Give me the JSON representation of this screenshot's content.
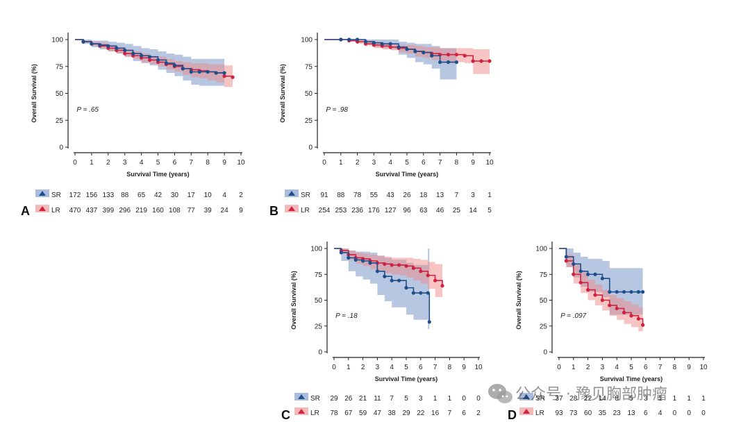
{
  "colors": {
    "SR": "#1f4e8c",
    "LR": "#d0213f",
    "SR_band": "#6f8fc4",
    "LR_band": "#f08a8a"
  },
  "watermark": {
    "text": "公众号 · 豫见胸部肿瘤",
    "icon": "wechat-icon"
  },
  "chart_data": [
    {
      "id": "A",
      "type": "line",
      "panel_letter": "A",
      "ylabel": "Overall Survival (%)",
      "xlabel": "Survival Time (years)",
      "ylim": [
        0,
        100
      ],
      "xlim": [
        0,
        10
      ],
      "yticks": [
        "0",
        "25",
        "50",
        "75",
        "100"
      ],
      "xticks": [
        "0",
        "1",
        "2",
        "3",
        "4",
        "5",
        "6",
        "7",
        "8",
        "9",
        "10"
      ],
      "p_value": "P = .65",
      "show_xlabel": true,
      "series": [
        {
          "name": "SR",
          "x": [
            0,
            0.5,
            1,
            1.5,
            2,
            2.5,
            3,
            3.5,
            4,
            4.5,
            5,
            5.5,
            6,
            6.5,
            7,
            7.5,
            8,
            8.5,
            9
          ],
          "y": [
            100,
            98,
            96,
            95,
            94,
            92,
            90,
            87,
            85,
            84,
            81,
            78,
            76,
            73,
            70,
            70,
            70,
            69,
            69
          ],
          "lower": [
            100,
            96,
            93,
            91,
            89,
            87,
            84,
            80,
            78,
            76,
            72,
            69,
            66,
            62,
            58,
            57,
            57,
            57,
            57
          ],
          "upper": [
            100,
            100,
            99,
            99,
            98,
            97,
            96,
            94,
            92,
            91,
            89,
            87,
            86,
            84,
            82,
            82,
            82,
            82,
            82
          ]
        },
        {
          "name": "LR",
          "x": [
            0,
            0.5,
            1,
            1.5,
            2,
            2.5,
            3,
            3.5,
            4,
            4.5,
            5,
            5.5,
            6,
            6.5,
            7,
            7.5,
            8,
            8.5,
            9,
            9.5
          ],
          "y": [
            100,
            98,
            96,
            94,
            92,
            90,
            87,
            85,
            83,
            81,
            79,
            77,
            75,
            73,
            72,
            71,
            70,
            69,
            66,
            65
          ],
          "lower": [
            100,
            97,
            94,
            92,
            89,
            87,
            84,
            82,
            79,
            77,
            75,
            72,
            70,
            67,
            65,
            64,
            62,
            60,
            56,
            55
          ],
          "upper": [
            100,
            99,
            98,
            97,
            95,
            93,
            91,
            89,
            87,
            85,
            84,
            82,
            80,
            79,
            78,
            78,
            77,
            77,
            76,
            75
          ]
        }
      ],
      "risk_table": {
        "SR": [
          "172",
          "156",
          "133",
          "88",
          "65",
          "42",
          "30",
          "17",
          "10",
          "4",
          "2"
        ],
        "LR": [
          "470",
          "437",
          "399",
          "296",
          "219",
          "160",
          "108",
          "77",
          "39",
          "24",
          "9"
        ]
      }
    },
    {
      "id": "B",
      "type": "line",
      "panel_letter": "B",
      "ylabel": "Overall Survival (%)",
      "xlabel": "Survival Time (years)",
      "ylim": [
        0,
        100
      ],
      "xlim": [
        0,
        10
      ],
      "yticks": [
        "0",
        "25",
        "50",
        "75",
        "100"
      ],
      "xticks": [
        "0",
        "1",
        "2",
        "3",
        "4",
        "5",
        "6",
        "7",
        "8",
        "9",
        "10"
      ],
      "p_value": "P = .98",
      "show_xlabel": true,
      "series": [
        {
          "name": "SR",
          "x": [
            0,
            1,
            1.5,
            2,
            2.5,
            3,
            3.5,
            4,
            4.5,
            5,
            5.5,
            6,
            6.5,
            7,
            7.5,
            8
          ],
          "y": [
            100,
            100,
            100,
            100,
            98,
            97,
            96,
            96,
            93,
            91,
            89,
            88,
            85,
            79,
            79,
            79
          ],
          "lower": [
            100,
            100,
            100,
            99,
            96,
            93,
            92,
            91,
            86,
            83,
            79,
            77,
            73,
            63,
            63,
            63
          ],
          "upper": [
            100,
            100,
            100,
            100,
            100,
            100,
            100,
            100,
            98,
            97,
            96,
            96,
            94,
            92,
            92,
            92
          ]
        },
        {
          "name": "LR",
          "x": [
            0,
            1,
            1.5,
            2,
            2.5,
            3,
            3.5,
            4,
            4.5,
            5,
            5.5,
            6,
            6.5,
            7,
            7.5,
            8,
            8.5,
            9,
            9.5,
            10
          ],
          "y": [
            100,
            100,
            99,
            98,
            96,
            95,
            94,
            93,
            92,
            91,
            89,
            88,
            87,
            86,
            86,
            86,
            85,
            80,
            80,
            80
          ],
          "lower": [
            100,
            100,
            98,
            96,
            94,
            92,
            91,
            90,
            88,
            87,
            84,
            83,
            81,
            80,
            79,
            79,
            78,
            68,
            68,
            68
          ],
          "upper": [
            100,
            100,
            100,
            100,
            99,
            98,
            97,
            96,
            95,
            95,
            94,
            93,
            93,
            92,
            92,
            92,
            92,
            91,
            91,
            91
          ]
        }
      ],
      "risk_table": {
        "SR": [
          "91",
          "88",
          "78",
          "55",
          "43",
          "26",
          "18",
          "13",
          "7",
          "3",
          "1"
        ],
        "LR": [
          "254",
          "253",
          "236",
          "176",
          "127",
          "96",
          "63",
          "46",
          "25",
          "14",
          "5"
        ]
      }
    },
    {
      "id": "C",
      "type": "line",
      "panel_letter": "C",
      "ylabel": "Overall Survival (%)",
      "xlabel": "Survival Time (years)",
      "ylim": [
        0,
        100
      ],
      "xlim": [
        0,
        10
      ],
      "yticks": [
        "0",
        "25",
        "50",
        "75",
        "100"
      ],
      "xticks": [
        "0",
        "1",
        "2",
        "3",
        "4",
        "5",
        "6",
        "7",
        "8",
        "9",
        "10"
      ],
      "p_value": "P = .18",
      "show_xlabel": true,
      "series": [
        {
          "name": "SR",
          "x": [
            0,
            0.5,
            1,
            1.5,
            2,
            2.5,
            3,
            3.5,
            4,
            4.5,
            5,
            5.5,
            6,
            6.5,
            6.6
          ],
          "y": [
            100,
            96,
            91,
            89,
            88,
            86,
            78,
            73,
            69,
            69,
            62,
            57,
            57,
            57,
            29
          ],
          "lower": [
            100,
            88,
            78,
            73,
            70,
            66,
            55,
            49,
            43,
            43,
            36,
            31,
            31,
            22,
            7
          ],
          "upper": [
            100,
            100,
            98,
            97,
            97,
            96,
            93,
            91,
            89,
            89,
            86,
            84,
            84,
            100,
            100
          ]
        },
        {
          "name": "LR",
          "x": [
            0,
            0.5,
            1,
            1.5,
            2,
            2.5,
            3,
            3.5,
            4,
            4.5,
            5,
            5.5,
            6,
            6.5,
            7,
            7.5
          ],
          "y": [
            100,
            98,
            94,
            91,
            90,
            88,
            86,
            85,
            84,
            84,
            83,
            81,
            78,
            74,
            69,
            64
          ],
          "lower": [
            100,
            95,
            89,
            85,
            83,
            80,
            78,
            76,
            75,
            74,
            72,
            69,
            66,
            61,
            53,
            48
          ],
          "upper": [
            100,
            100,
            98,
            96,
            95,
            94,
            93,
            92,
            91,
            91,
            91,
            90,
            89,
            87,
            85,
            83
          ]
        }
      ],
      "risk_table": {
        "SR": [
          "29",
          "26",
          "21",
          "11",
          "7",
          "5",
          "3",
          "1",
          "1",
          "0",
          "0"
        ],
        "LR": [
          "78",
          "67",
          "59",
          "47",
          "38",
          "29",
          "22",
          "16",
          "7",
          "6",
          "2"
        ]
      }
    },
    {
      "id": "D",
      "type": "line",
      "panel_letter": "D",
      "ylabel": "Overall Survival (%)",
      "xlabel": "Survival Time (years)",
      "ylim": [
        0,
        100
      ],
      "xlim": [
        0,
        10
      ],
      "yticks": [
        "0",
        "25",
        "50",
        "75",
        "100"
      ],
      "xticks": [
        "0",
        "1",
        "2",
        "3",
        "4",
        "5",
        "6",
        "7",
        "8",
        "9",
        "10"
      ],
      "p_value": "P = .097",
      "show_xlabel": true,
      "series": [
        {
          "name": "SR",
          "x": [
            0,
            0.5,
            1,
            1.5,
            2,
            2.5,
            3,
            3.5,
            4,
            4.5,
            5,
            5.5,
            5.8
          ],
          "y": [
            100,
            92,
            85,
            78,
            75,
            75,
            71,
            58,
            58,
            58,
            58,
            58,
            58
          ],
          "lower": [
            100,
            82,
            72,
            63,
            58,
            58,
            53,
            36,
            36,
            36,
            36,
            36,
            36
          ],
          "upper": [
            100,
            100,
            96,
            92,
            90,
            90,
            88,
            81,
            81,
            81,
            81,
            81,
            81
          ]
        },
        {
          "name": "LR",
          "x": [
            0,
            0.5,
            1,
            1.5,
            2,
            2.5,
            3,
            3.5,
            4,
            4.5,
            5,
            5.5,
            5.8
          ],
          "y": [
            100,
            88,
            75,
            67,
            60,
            55,
            50,
            45,
            42,
            38,
            35,
            32,
            26
          ],
          "lower": [
            100,
            82,
            66,
            57,
            50,
            45,
            40,
            35,
            31,
            27,
            24,
            20,
            16
          ],
          "upper": [
            100,
            94,
            84,
            77,
            70,
            65,
            60,
            55,
            52,
            49,
            46,
            43,
            38
          ]
        }
      ],
      "risk_table": {
        "SR": [
          "37",
          "28",
          "22",
          "14",
          "8",
          "5",
          "3",
          "1",
          "1",
          "1",
          "1"
        ],
        "LR": [
          "93",
          "73",
          "60",
          "35",
          "23",
          "13",
          "6",
          "4",
          "0",
          "0",
          "0"
        ]
      }
    }
  ]
}
